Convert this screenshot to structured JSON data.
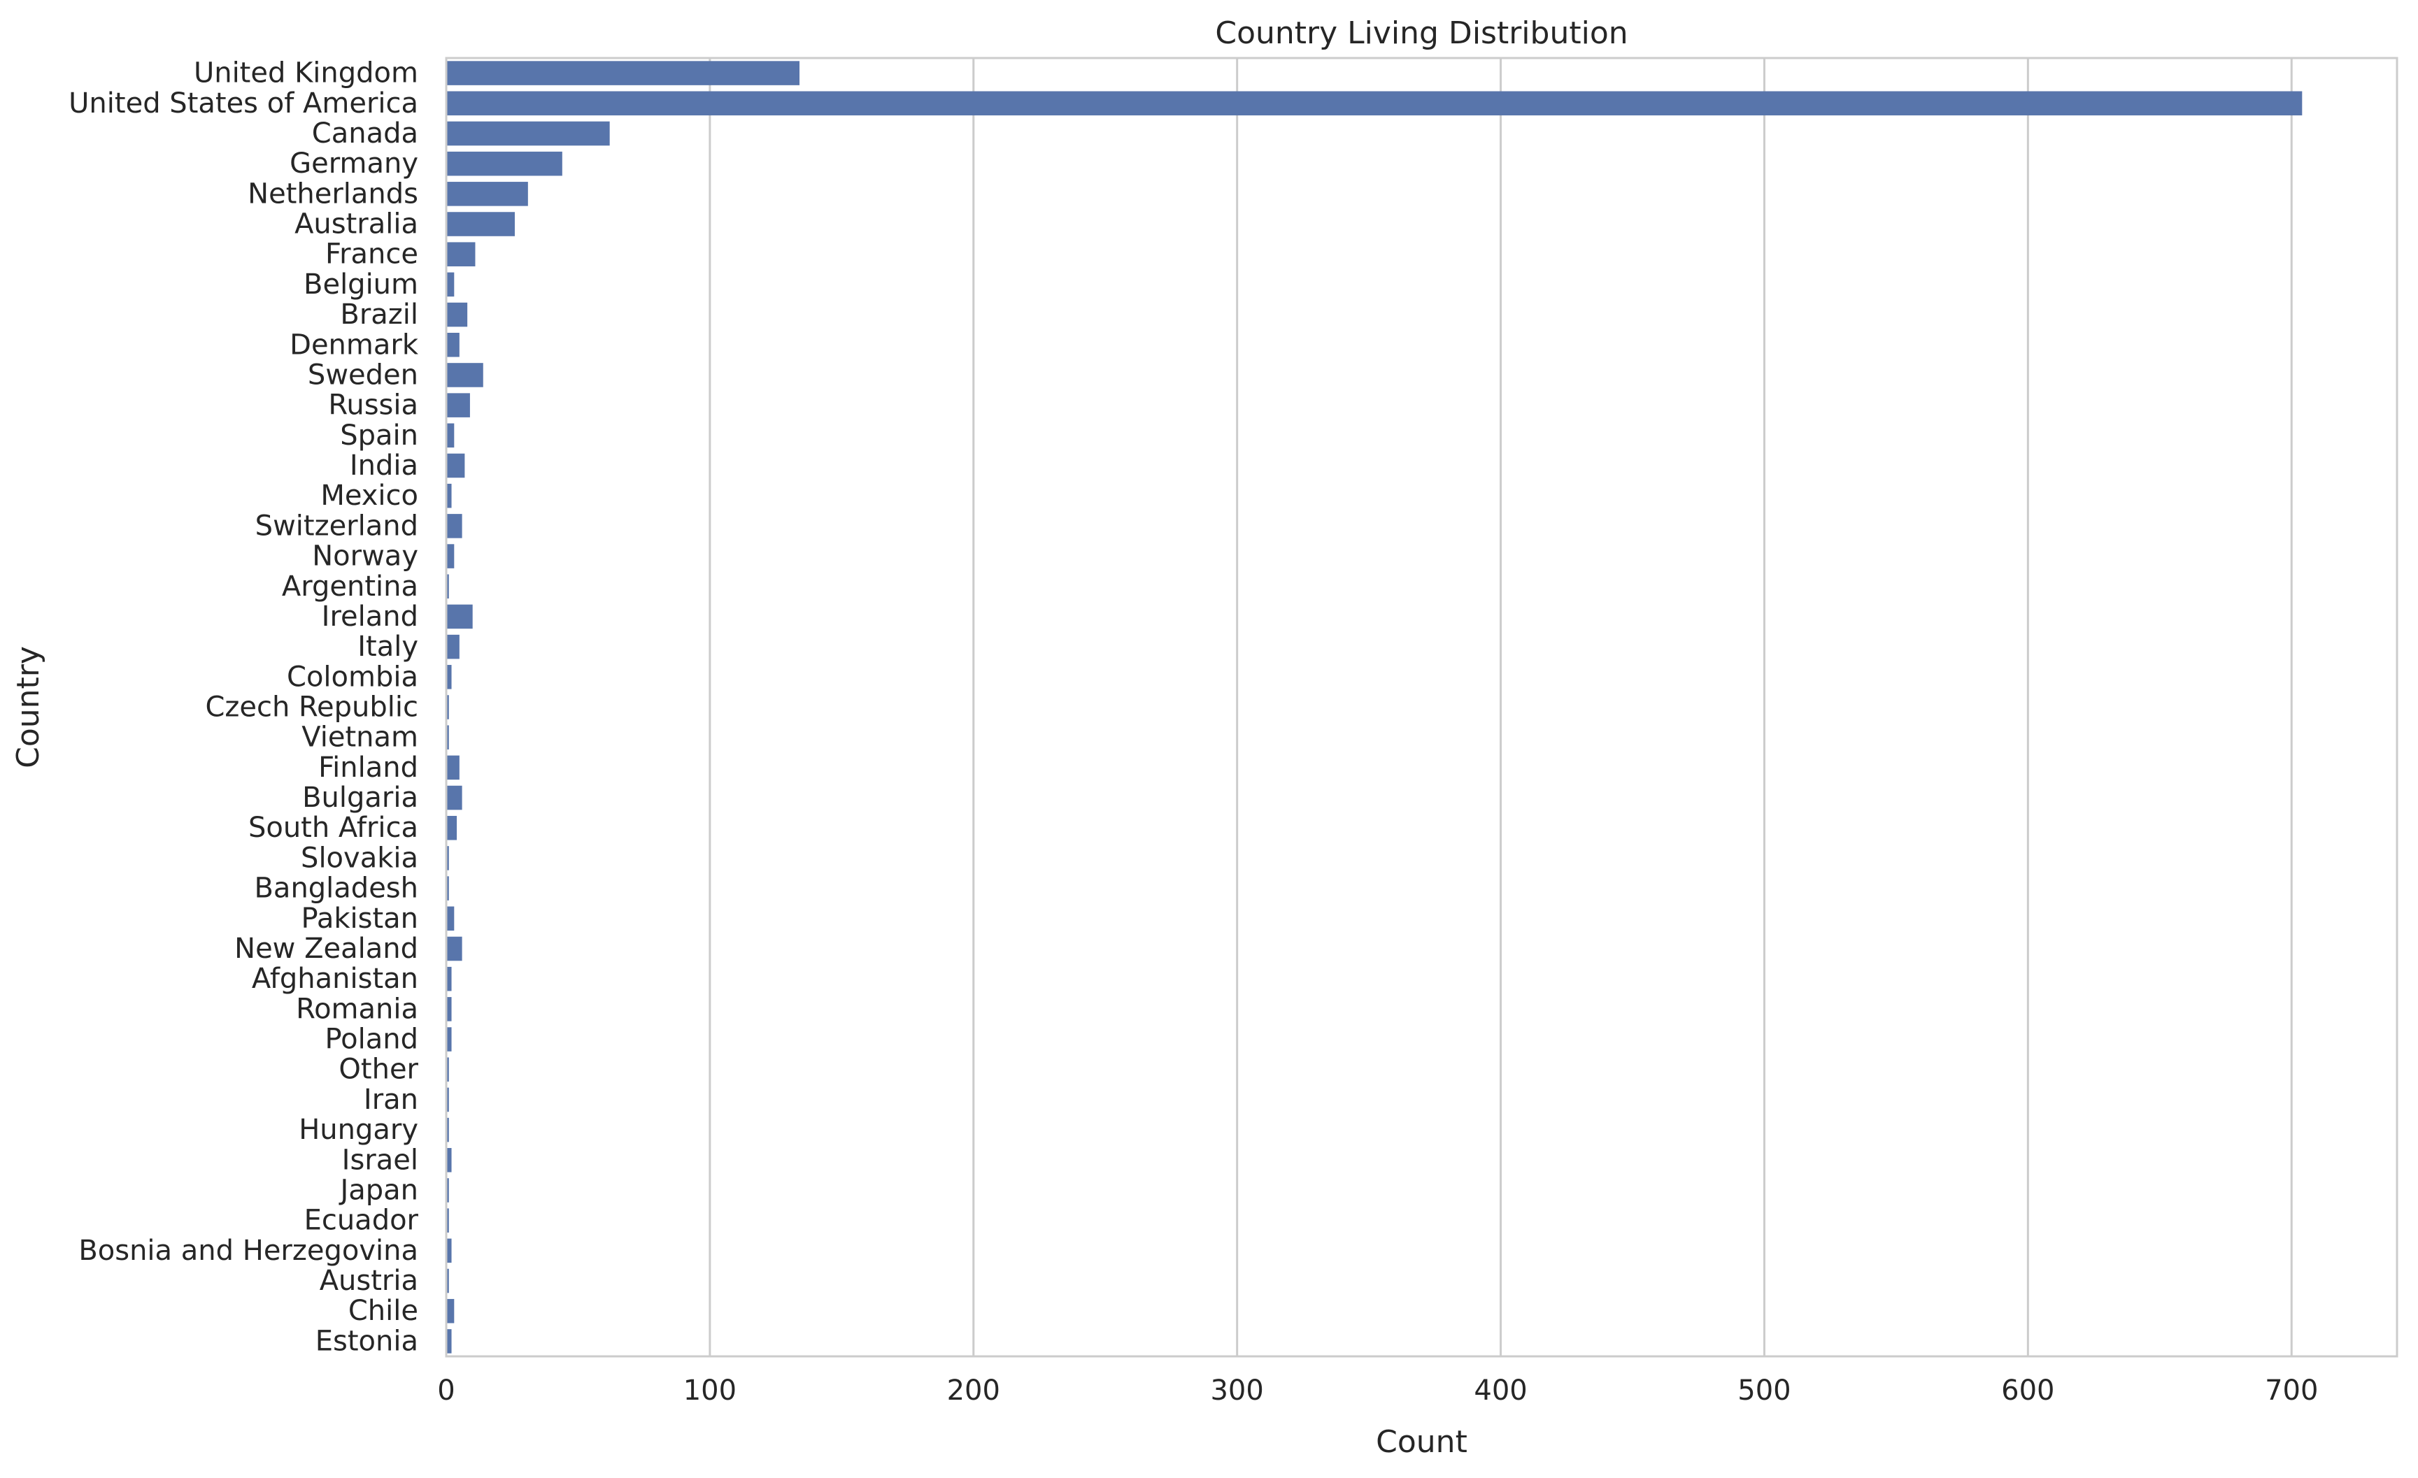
{
  "chart_data": {
    "type": "bar",
    "orientation": "horizontal",
    "title": "Country Living Distribution",
    "xlabel": "Count",
    "ylabel": "Country",
    "xlim": [
      0,
      740
    ],
    "xticks": [
      0,
      100,
      200,
      300,
      400,
      500,
      600,
      700
    ],
    "grid": "vertical",
    "bar_color": "#5875ab",
    "categories": [
      "United Kingdom",
      "United States of America",
      "Canada",
      "Germany",
      "Netherlands",
      "Australia",
      "France",
      "Belgium",
      "Brazil",
      "Denmark",
      "Sweden",
      "Russia",
      "Spain",
      "India",
      "Mexico",
      "Switzerland",
      "Norway",
      "Argentina",
      "Ireland",
      "Italy",
      "Colombia",
      "Czech Republic",
      "Vietnam",
      "Finland",
      "Bulgaria",
      "South Africa",
      "Slovakia",
      "Bangladesh",
      "Pakistan",
      "New Zealand",
      "Afghanistan",
      "Romania",
      "Poland",
      "Other",
      "Iran",
      "Hungary",
      "Israel",
      "Japan",
      "Ecuador",
      "Bosnia and Herzegovina",
      "Austria",
      "Chile",
      "Estonia"
    ],
    "values": [
      134,
      704,
      62,
      44,
      31,
      26,
      11,
      3,
      8,
      5,
      14,
      9,
      3,
      7,
      2,
      6,
      3,
      1,
      10,
      5,
      2,
      1,
      1,
      5,
      6,
      4,
      1,
      1,
      3,
      6,
      2,
      2,
      2,
      1,
      1,
      1,
      2,
      1,
      1,
      2,
      1,
      3,
      2
    ]
  }
}
